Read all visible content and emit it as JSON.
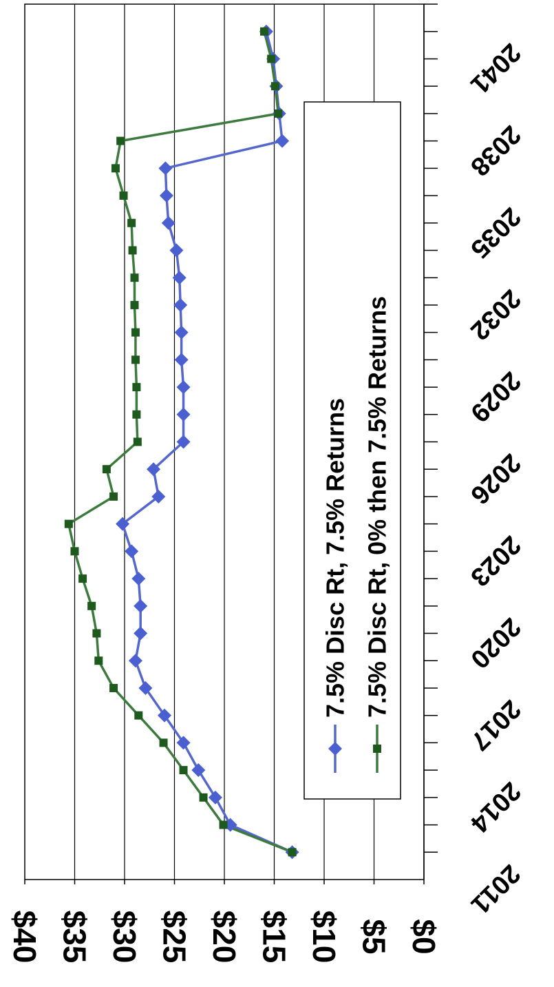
{
  "chart_data": {
    "type": "line",
    "orientation": "rotated 90 degrees clockwise",
    "x": [
      2012,
      2013,
      2014,
      2015,
      2016,
      2017,
      2018,
      2019,
      2020,
      2021,
      2022,
      2023,
      2024,
      2025,
      2026,
      2027,
      2028,
      2029,
      2030,
      2031,
      2032,
      2033,
      2034,
      2035,
      2036,
      2037,
      2038,
      2039,
      2040,
      2041,
      2042
    ],
    "x_tick_labels": [
      "2011",
      "2014",
      "2017",
      "2020",
      "2023",
      "2026",
      "2029",
      "2032",
      "2035",
      "2038",
      "2041"
    ],
    "xlim": [
      2011,
      2043
    ],
    "ylim": [
      0,
      40
    ],
    "y_tick_labels": [
      "$0",
      "$5",
      "$10",
      "$15",
      "$20",
      "$25",
      "$30",
      "$35",
      "$40"
    ],
    "grid": "horizontal value gridlines",
    "legend_position": "upper right",
    "colors": {
      "series1_line": "#5566cc",
      "series1_marker": "#4a5fd0",
      "series2_line": "#3d7a3d",
      "series2_marker": "#1e5a1e",
      "grid": "#000000"
    },
    "series": [
      {
        "name": "7.5% Disc Rt, 7.5% Returns",
        "marker": "diamond",
        "values": [
          13.2,
          19.4,
          20.9,
          22.6,
          24.1,
          26.0,
          27.9,
          28.9,
          28.4,
          28.4,
          28.6,
          29.3,
          30.2,
          26.6,
          27.1,
          24.1,
          24.1,
          24.1,
          24.3,
          24.3,
          24.4,
          24.5,
          24.8,
          25.6,
          25.8,
          25.9,
          14.2,
          14.5,
          14.8,
          15.1,
          15.8
        ]
      },
      {
        "name": "7.5% Disc Rt, 0% then 7.5% Returns",
        "marker": "square",
        "values": [
          13.2,
          20.1,
          22.1,
          24.1,
          26.1,
          28.6,
          31.1,
          32.6,
          32.8,
          33.3,
          34.2,
          35.0,
          35.6,
          31.1,
          31.8,
          28.7,
          28.8,
          28.8,
          28.9,
          28.9,
          29.0,
          29.0,
          29.2,
          29.3,
          30.1,
          30.9,
          30.4,
          14.6,
          14.9,
          15.3,
          16.0
        ]
      }
    ]
  }
}
